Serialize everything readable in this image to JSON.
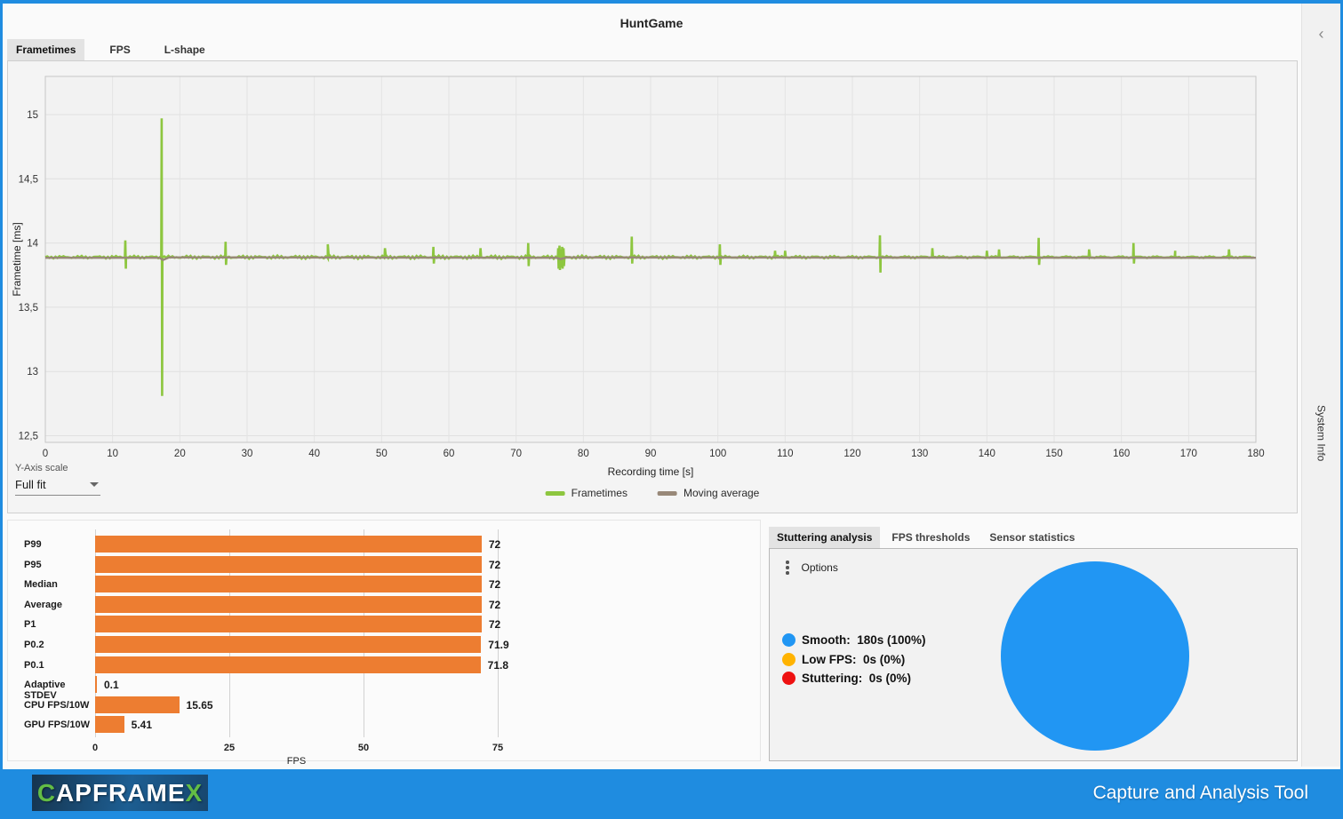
{
  "window": {
    "title": "HuntGame"
  },
  "main_tabs": [
    {
      "label": "Frametimes",
      "active": true
    },
    {
      "label": "FPS",
      "active": false
    },
    {
      "label": "L-shape",
      "active": false
    }
  ],
  "sidebar": {
    "collapse_icon": "‹",
    "label": "System Info"
  },
  "controls": {
    "y_axis_scale_label": "Y-Axis scale",
    "y_axis_scale_value": "Full fit"
  },
  "colors": {
    "accent_blue": "#1f8ce0",
    "frametimes_green": "#8dc63f",
    "moving_average_brown": "#988878",
    "bar_orange": "#ed7d31",
    "pie_blue": "#2196f3",
    "pie_amber": "#ffb300",
    "pie_red": "#ee1111"
  },
  "footer": {
    "logo_c": "C",
    "logo_mid": "APFRAME",
    "logo_x": "X",
    "tagline": "Capture and Analysis Tool"
  },
  "chart_data": [
    {
      "id": "frametime_chart",
      "type": "line",
      "title": "",
      "xlabel": "Recording time [s]",
      "ylabel": "Frametime [ms]",
      "xlim": [
        0,
        180
      ],
      "xticks": [
        0,
        10,
        20,
        30,
        40,
        50,
        60,
        70,
        80,
        90,
        100,
        110,
        120,
        130,
        140,
        150,
        160,
        170,
        180
      ],
      "yticks": [
        12.5,
        13,
        13.5,
        14,
        14.5,
        15
      ],
      "ytick_labels": [
        "12,5",
        "13",
        "13,5",
        "14",
        "14,5",
        "15"
      ],
      "grid": true,
      "legend_position": "bottom",
      "series": [
        {
          "name": "Frametimes",
          "baseline": 13.89,
          "spikes": [
            {
              "t": 11.9,
              "up": 14.02,
              "dn": 13.8
            },
            {
              "t": 17.3,
              "up": 14.97,
              "dn": 12.81
            },
            {
              "t": 26.8,
              "up": 14.01,
              "dn": 13.83
            },
            {
              "t": 42.0,
              "up": 13.99,
              "dn": null
            },
            {
              "t": 50.5,
              "up": 13.96,
              "dn": null
            },
            {
              "t": 57.7,
              "up": 13.97,
              "dn": 13.84
            },
            {
              "t": 64.7,
              "up": 13.96,
              "dn": null
            },
            {
              "t": 71.8,
              "up": 14.0,
              "dn": 13.82
            },
            {
              "t": 76.25,
              "up": 13.96,
              "dn": 13.8
            },
            {
              "t": 76.45,
              "up": 13.98,
              "dn": 13.79
            },
            {
              "t": 76.65,
              "up": 13.95,
              "dn": 13.81
            },
            {
              "t": 76.85,
              "up": 13.97,
              "dn": 13.8
            },
            {
              "t": 77.05,
              "up": 13.96,
              "dn": 13.82
            },
            {
              "t": 87.2,
              "up": 14.05,
              "dn": 13.84
            },
            {
              "t": 100.3,
              "up": 13.99,
              "dn": 13.83
            },
            {
              "t": 108.5,
              "up": 13.94,
              "dn": null
            },
            {
              "t": 110.0,
              "up": 13.94,
              "dn": null
            },
            {
              "t": 124.1,
              "up": 14.06,
              "dn": 13.77
            },
            {
              "t": 131.9,
              "up": 13.96,
              "dn": null
            },
            {
              "t": 140.0,
              "up": 13.94,
              "dn": null
            },
            {
              "t": 141.8,
              "up": 13.95,
              "dn": null
            },
            {
              "t": 147.7,
              "up": 14.04,
              "dn": 13.83
            },
            {
              "t": 155.2,
              "up": 13.95,
              "dn": null
            },
            {
              "t": 161.8,
              "up": 14.0,
              "dn": 13.84
            },
            {
              "t": 168.0,
              "up": 13.94,
              "dn": null
            },
            {
              "t": 176.0,
              "up": 13.95,
              "dn": null
            }
          ]
        },
        {
          "name": "Moving average",
          "points": [
            [
              0,
              13.885
            ],
            [
              17.0,
              13.885
            ],
            [
              17.5,
              13.868
            ],
            [
              18.4,
              13.888
            ],
            [
              76.0,
              13.885
            ],
            [
              76.6,
              13.875
            ],
            [
              77.5,
              13.888
            ],
            [
              180,
              13.885
            ]
          ]
        }
      ],
      "legend": [
        {
          "label": "Frametimes",
          "color": "#8dc63f"
        },
        {
          "label": "Moving average",
          "color": "#988878"
        }
      ]
    },
    {
      "id": "fps_bar_chart",
      "type": "bar",
      "orientation": "horizontal",
      "categories": [
        "P99",
        "P95",
        "Median",
        "Average",
        "P1",
        "P0.2",
        "P0.1",
        "Adaptive STDEV",
        "CPU FPS/10W",
        "GPU FPS/10W"
      ],
      "values": [
        72,
        72,
        72,
        72,
        72,
        71.9,
        71.8,
        0.1,
        15.65,
        5.41
      ],
      "value_labels": [
        "72",
        "72",
        "72",
        "72",
        "72",
        "71.9",
        "71.8",
        "0.1",
        "15.65",
        "5.41"
      ],
      "xlabel": "FPS",
      "xticks": [
        0,
        25,
        50,
        75
      ],
      "xlim": [
        0,
        78
      ],
      "grid": true
    },
    {
      "id": "stuttering_pie",
      "type": "pie",
      "slices": [
        {
          "name": "Smooth:",
          "value_label": "180s (100%)",
          "value": 100,
          "color": "#2196f3"
        },
        {
          "name": "Low FPS:",
          "value_label": "0s (0%)",
          "value": 0,
          "color": "#ffb300"
        },
        {
          "name": "Stuttering:",
          "value_label": "0s (0%)",
          "value": 0,
          "color": "#ee1111"
        }
      ]
    }
  ],
  "analysis": {
    "tabs": [
      {
        "label": "Stuttering analysis",
        "active": true
      },
      {
        "label": "FPS thresholds",
        "active": false
      },
      {
        "label": "Sensor statistics",
        "active": false
      }
    ],
    "options_label": "Options"
  }
}
